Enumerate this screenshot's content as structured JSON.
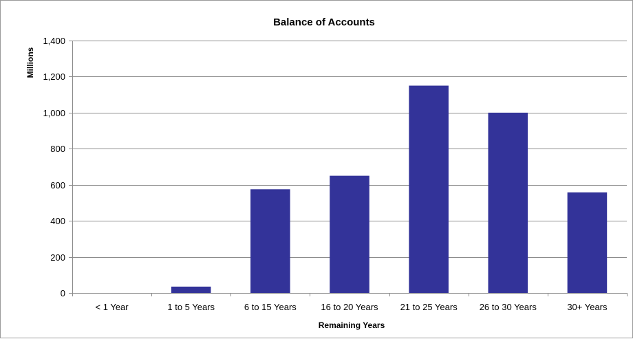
{
  "chart_data": {
    "type": "bar",
    "title": "Balance of Accounts",
    "xlabel": "Remaining Years",
    "ylabel": "Millions",
    "categories": [
      "< 1 Year",
      "1 to 5 Years",
      "6 to 15 Years",
      "16 to 20 Years",
      "21 to 25 Years",
      "26 to 30 Years",
      "30+ Years"
    ],
    "values": [
      0,
      35,
      575,
      650,
      1150,
      1000,
      558
    ],
    "ylim": [
      0,
      1400
    ],
    "yticks": [
      0,
      200,
      400,
      600,
      800,
      1000,
      1200,
      1400
    ],
    "ytick_labels": [
      "0",
      "200",
      "400",
      "600",
      "800",
      "1,000",
      "1,200",
      "1,400"
    ],
    "grid": true,
    "legend": "none",
    "bar_color": "#333399"
  }
}
